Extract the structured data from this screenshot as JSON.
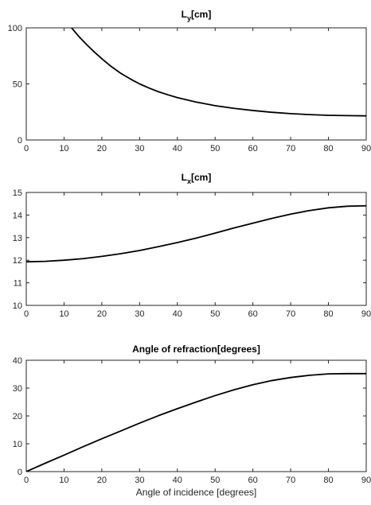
{
  "chart_data": [
    {
      "type": "line",
      "title_main": "L",
      "title_sub": "y",
      "title_unit": "[cm]",
      "xlabel": "",
      "ylabel": "",
      "xlim": [
        0,
        90
      ],
      "ylim": [
        0,
        100
      ],
      "xticks": [
        "0",
        "10",
        "20",
        "30",
        "40",
        "50",
        "60",
        "70",
        "80",
        "90"
      ],
      "yticks": [
        "0",
        "50",
        "100"
      ],
      "grid": false,
      "series": [
        {
          "color": "#000000",
          "x": [
            12,
            14,
            16,
            18,
            20,
            22.5,
            25,
            27.5,
            30,
            32.5,
            35,
            37.5,
            40,
            45,
            50,
            55,
            60,
            65,
            70,
            75,
            80,
            85,
            90
          ],
          "y": [
            100,
            92,
            85,
            78.5,
            72.5,
            65.5,
            59.5,
            54.5,
            50,
            46.3,
            43,
            40.3,
            37.8,
            33.8,
            30.6,
            28.2,
            26.3,
            24.7,
            23.5,
            22.6,
            22,
            21.7,
            21.5
          ]
        }
      ]
    },
    {
      "type": "line",
      "title_main": "L",
      "title_sub": "x",
      "title_unit": "[cm]",
      "xlabel": "",
      "ylabel": "",
      "xlim": [
        0,
        90
      ],
      "ylim": [
        10,
        15
      ],
      "xticks": [
        "0",
        "10",
        "20",
        "30",
        "40",
        "50",
        "60",
        "70",
        "80",
        "90"
      ],
      "yticks": [
        "10",
        "11",
        "12",
        "13",
        "14",
        "15"
      ],
      "grid": false,
      "series": [
        {
          "color": "#000000",
          "x": [
            0,
            5,
            10,
            15,
            20,
            25,
            30,
            35,
            40,
            45,
            50,
            55,
            60,
            65,
            70,
            75,
            80,
            85,
            90
          ],
          "y": [
            11.93,
            11.95,
            12.0,
            12.07,
            12.17,
            12.29,
            12.43,
            12.6,
            12.78,
            12.98,
            13.2,
            13.43,
            13.64,
            13.85,
            14.04,
            14.2,
            14.32,
            14.39,
            14.41
          ]
        }
      ]
    },
    {
      "type": "line",
      "title_main": "Angle of refraction[degrees]",
      "title_sub": "",
      "title_unit": "",
      "xlabel": "Angle of incidence [degrees]",
      "ylabel": "",
      "xlim": [
        0,
        90
      ],
      "ylim": [
        0,
        40
      ],
      "xticks": [
        "0",
        "10",
        "20",
        "30",
        "40",
        "50",
        "60",
        "70",
        "80",
        "90"
      ],
      "yticks": [
        "0",
        "10",
        "20",
        "30",
        "40"
      ],
      "grid": false,
      "series": [
        {
          "color": "#000000",
          "x": [
            0,
            5,
            10,
            15,
            20,
            25,
            30,
            35,
            40,
            45,
            50,
            55,
            60,
            65,
            70,
            75,
            80,
            85,
            90
          ],
          "y": [
            0,
            3.0,
            5.9,
            8.9,
            11.8,
            14.6,
            17.4,
            20.1,
            22.6,
            25.0,
            27.3,
            29.4,
            31.2,
            32.7,
            33.8,
            34.6,
            35.1,
            35.2,
            35.2
          ]
        }
      ]
    }
  ]
}
